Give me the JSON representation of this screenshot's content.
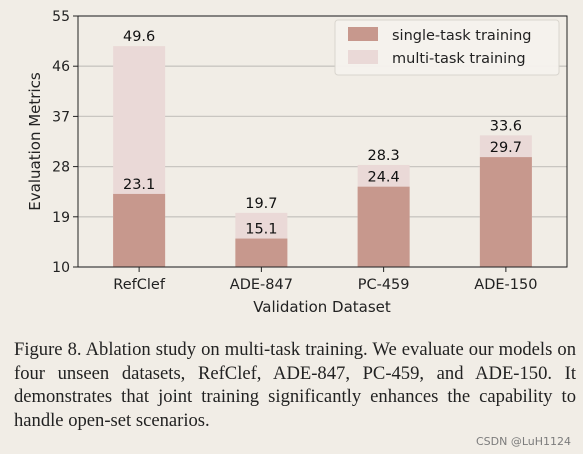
{
  "chart_data": {
    "type": "bar",
    "categories": [
      "RefClef",
      "ADE-847",
      "PC-459",
      "ADE-150"
    ],
    "series": [
      {
        "name": "single-task training",
        "values": [
          23.1,
          15.1,
          24.4,
          29.7
        ],
        "color": "#c7988d"
      },
      {
        "name": "multi-task training",
        "values": [
          49.6,
          19.7,
          28.3,
          33.6
        ],
        "color": "#ead9d7"
      }
    ],
    "xlabel": "Validation Dataset",
    "ylabel": "Evaluation Metrics",
    "ylim": [
      10,
      55
    ],
    "yticks": [
      10,
      19,
      28,
      37,
      46,
      55
    ],
    "grid": "y",
    "legend": "top-right",
    "stacked_overlay": true
  },
  "caption": "Figure 8.  Ablation study on multi-task training.  We evaluate our models on four unseen datasets, RefClef, ADE-847, PC-459, and ADE-150. It demonstrates that joint training significantly enhances the capability to handle open-set scenarios.",
  "watermark": "CSDN @LuH1124"
}
